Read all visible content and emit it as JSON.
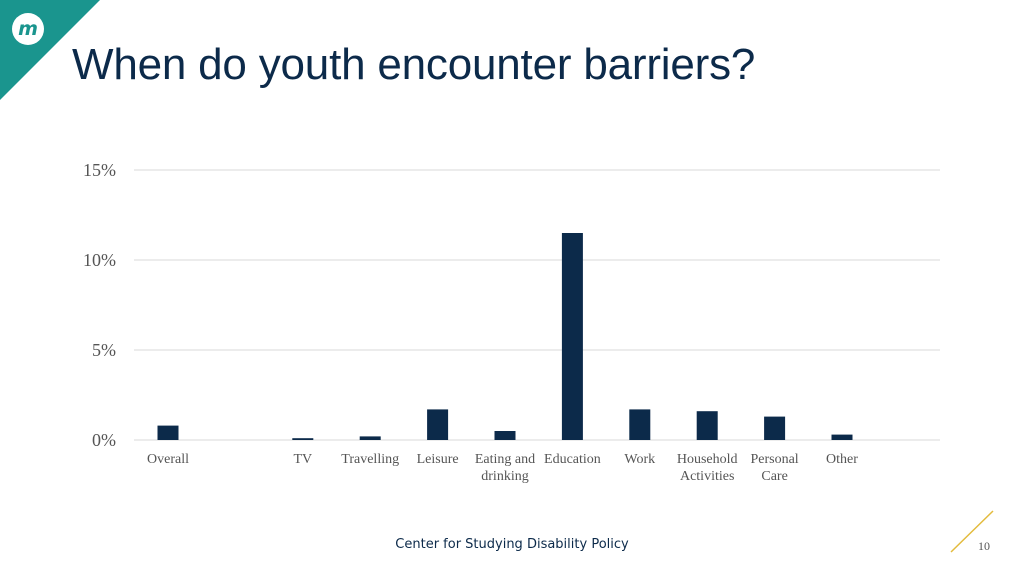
{
  "slide": {
    "title": "When do youth encounter barriers?",
    "footer": "Center for Studying Disability Policy",
    "page_number": "10",
    "logo_text": "m",
    "colors": {
      "title": "#0c2a4a",
      "bar": "#0c2a4a",
      "logo_teal": "#1a958e",
      "accent_gold": "#e3bb3c",
      "gridline": "#d9d9d9"
    }
  },
  "chart_data": {
    "type": "bar",
    "title": "",
    "xlabel": "",
    "ylabel": "",
    "ylim": [
      0,
      15
    ],
    "grid": true,
    "legend": "none",
    "yticks": [
      {
        "value": 0,
        "label": "0%"
      },
      {
        "value": 5,
        "label": "5%"
      },
      {
        "value": 10,
        "label": "10%"
      },
      {
        "value": 15,
        "label": "15%"
      }
    ],
    "categories": [
      [
        "Overall"
      ],
      [
        ""
      ],
      [
        "TV"
      ],
      [
        "Travelling"
      ],
      [
        "Leisure"
      ],
      [
        "Eating and",
        "drinking"
      ],
      [
        "Education"
      ],
      [
        "Work"
      ],
      [
        "Household",
        "Activities"
      ],
      [
        "Personal",
        "Care"
      ],
      [
        "Other"
      ]
    ],
    "values": [
      0.8,
      null,
      0.1,
      0.2,
      1.7,
      0.5,
      11.5,
      1.7,
      1.6,
      1.3,
      0.3
    ]
  }
}
